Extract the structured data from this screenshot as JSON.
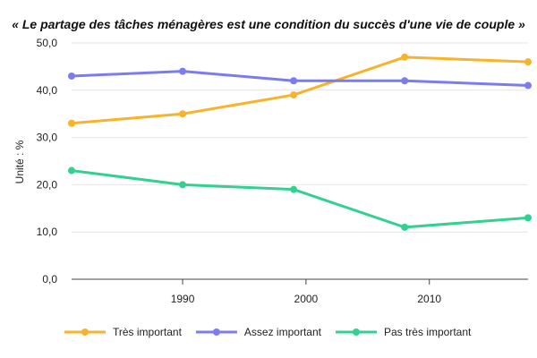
{
  "chart_data": {
    "type": "line",
    "title": "« Le partage des tâches ménagères est une condition du succès d'une vie de couple »",
    "ylabel": "Unité : %",
    "xlabel": "",
    "xlim": [
      1981,
      2018
    ],
    "ylim": [
      0,
      50
    ],
    "x_ticks": [
      {
        "value": 1990,
        "label": "1990"
      },
      {
        "value": 2000,
        "label": "2000"
      },
      {
        "value": 2010,
        "label": "2010"
      }
    ],
    "y_ticks": [
      {
        "value": 0,
        "label": "0,0"
      },
      {
        "value": 10,
        "label": "10,0"
      },
      {
        "value": 20,
        "label": "20,0"
      },
      {
        "value": 30,
        "label": "30,0"
      },
      {
        "value": 40,
        "label": "40,0"
      },
      {
        "value": 50,
        "label": "50,0"
      }
    ],
    "grid": true,
    "legend_position": "bottom-left",
    "x": [
      1981,
      1990,
      1999,
      2008,
      2018
    ],
    "series": [
      {
        "name": "Très important",
        "color": "#f7b32b",
        "values": [
          33,
          35,
          39,
          47,
          46
        ]
      },
      {
        "name": "Assez important",
        "color": "#7b7cf0",
        "values": [
          43,
          44,
          42,
          42,
          41
        ]
      },
      {
        "name": "Pas très important",
        "color": "#33d18f",
        "values": [
          23,
          20,
          19,
          11,
          13
        ]
      }
    ]
  }
}
